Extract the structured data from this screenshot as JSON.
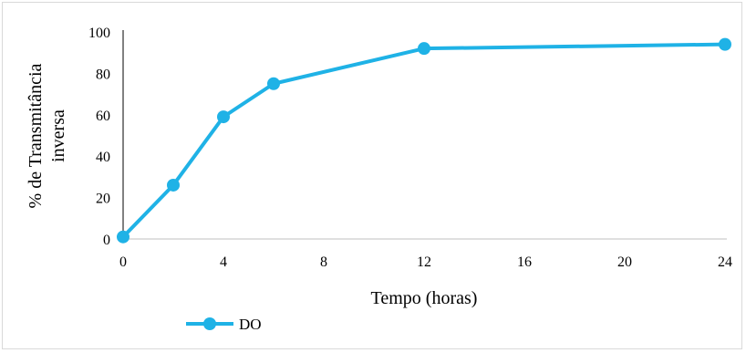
{
  "chart_data": {
    "type": "line",
    "xlabel": "Tempo (horas)",
    "ylabel_lines": [
      "% de Transmitância",
      "inversa"
    ],
    "x_ticks": [
      "0",
      "4",
      "8",
      "12",
      "16",
      "20",
      "24"
    ],
    "y_ticks": [
      "0",
      "20",
      "40",
      "60",
      "80",
      "100"
    ],
    "ylim": [
      0,
      100
    ],
    "x_positions_note_free": true,
    "categories": [
      "0",
      "2",
      "4",
      "6",
      "12",
      "24"
    ],
    "series": [
      {
        "name": "DO",
        "color": "#1fb2e6",
        "values": [
          1,
          26,
          59,
          75,
          92,
          94
        ]
      }
    ],
    "legend_position": "bottom-left",
    "grid": false
  }
}
